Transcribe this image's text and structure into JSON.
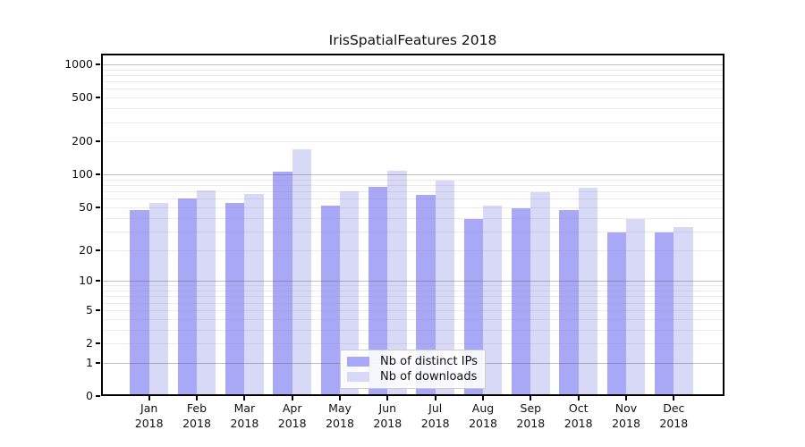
{
  "chart_data": {
    "type": "bar",
    "title": "IrisSpatialFeatures 2018",
    "categories": [
      "Jan",
      "Feb",
      "Mar",
      "Apr",
      "May",
      "Jun",
      "Jul",
      "Aug",
      "Sep",
      "Oct",
      "Nov",
      "Dec"
    ],
    "x_tick_year": "2018",
    "series": [
      {
        "name": "Nb of distinct IPs",
        "color": "#a8a8f7",
        "values": [
          47,
          60,
          55,
          107,
          52,
          77,
          65,
          39,
          49,
          47,
          29,
          29
        ]
      },
      {
        "name": "Nb of downloads",
        "color": "#d8d8f7",
        "values": [
          55,
          71,
          66,
          170,
          70,
          108,
          88,
          52,
          69,
          75,
          39,
          33
        ]
      }
    ],
    "y_ticks": [
      0,
      1,
      2,
      5,
      10,
      20,
      50,
      100,
      200,
      500,
      1000
    ],
    "y_scale": "log1p",
    "y_max": 1250,
    "ylim": [
      0,
      1250
    ],
    "xlabel": "",
    "ylabel": "",
    "grid": true,
    "legend_position": "bottom-center-inside",
    "colors": {
      "background": "#ffffff",
      "spine": "#000000",
      "major_grid": "#bebebe",
      "minor_grid": "#ebebeb",
      "text": "#111111"
    }
  }
}
